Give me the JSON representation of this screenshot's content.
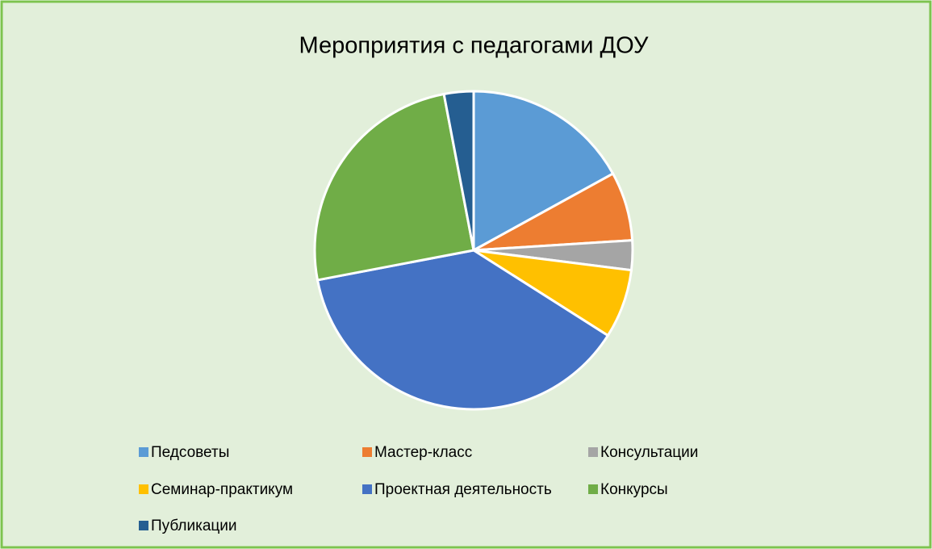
{
  "chart_data": {
    "type": "pie",
    "title": "Мероприятия с педагогами ДОУ",
    "categories": [
      "Педсоветы",
      "Мастер-класс",
      "Консультации",
      "Семинар-практикум",
      "Проектная деятельность",
      "Конкурсы",
      "Публикации"
    ],
    "values": [
      17,
      7,
      3,
      7,
      38,
      25,
      3
    ],
    "colors": [
      "#5b9bd5",
      "#ed7d31",
      "#a5a5a5",
      "#ffc000",
      "#4472c4",
      "#70ad47",
      "#255e91"
    ],
    "legend": "bottom"
  }
}
